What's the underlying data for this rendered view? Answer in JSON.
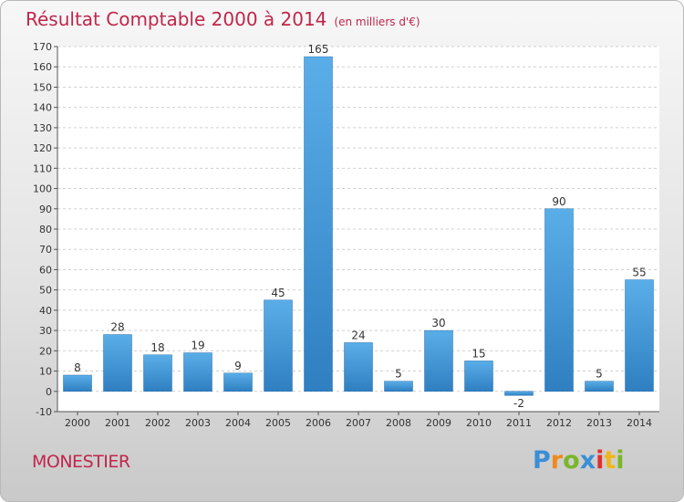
{
  "header": {
    "title": "Résultat Comptable 2000 à 2014",
    "subtitle": "(en milliers d'€)"
  },
  "footer": {
    "commune": "MONESTIER",
    "logo_letters": [
      "P",
      "r",
      "o",
      "x",
      "i",
      "t",
      "i"
    ]
  },
  "colors": {
    "bar_top": "#5aaee8",
    "bar_bottom": "#2f7fc1",
    "title": "#c0264b",
    "grid": "#d0d0d0"
  },
  "chart_data": {
    "type": "bar",
    "title": "Résultat Comptable 2000 à 2014",
    "subtitle": "(en milliers d'€)",
    "categories": [
      "2000",
      "2001",
      "2002",
      "2003",
      "2004",
      "2005",
      "2006",
      "2007",
      "2008",
      "2009",
      "2010",
      "2011",
      "2012",
      "2013",
      "2014"
    ],
    "values": [
      8,
      28,
      18,
      19,
      9,
      45,
      165,
      24,
      5,
      30,
      15,
      -2,
      90,
      5,
      55
    ],
    "ylim": [
      -10,
      170
    ],
    "yticks": [
      -10,
      0,
      10,
      20,
      30,
      40,
      50,
      60,
      70,
      80,
      90,
      100,
      110,
      120,
      130,
      140,
      150,
      160,
      170
    ],
    "grid": true,
    "legend": "none"
  }
}
